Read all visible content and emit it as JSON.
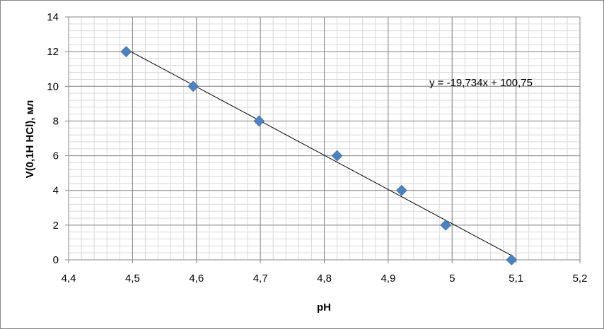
{
  "chart_data": {
    "type": "scatter",
    "title": "",
    "xlabel": "pH",
    "ylabel": "V(0,1Н HCl), мл",
    "xlim": [
      4.4,
      5.2
    ],
    "ylim": [
      0,
      14
    ],
    "x_ticks": [
      "4,4",
      "4,5",
      "4,6",
      "4,7",
      "4,8",
      "4,9",
      "5",
      "5,1",
      "5,2"
    ],
    "y_ticks": [
      "0",
      "2",
      "4",
      "6",
      "8",
      "10",
      "12",
      "14"
    ],
    "grid": true,
    "legend": "none",
    "marker_color": "#4F81BD",
    "series": [
      {
        "x": [
          4.49,
          4.595,
          4.698,
          4.82,
          4.921,
          4.99,
          5.093
        ],
        "y": [
          12,
          10,
          8,
          6,
          4,
          2,
          0
        ]
      }
    ],
    "trendline": {
      "type": "linear",
      "slope": -19.734,
      "intercept": 100.75,
      "x_range": [
        4.49,
        5.093
      ],
      "equation": "y = -19,734x + 100,75"
    }
  }
}
